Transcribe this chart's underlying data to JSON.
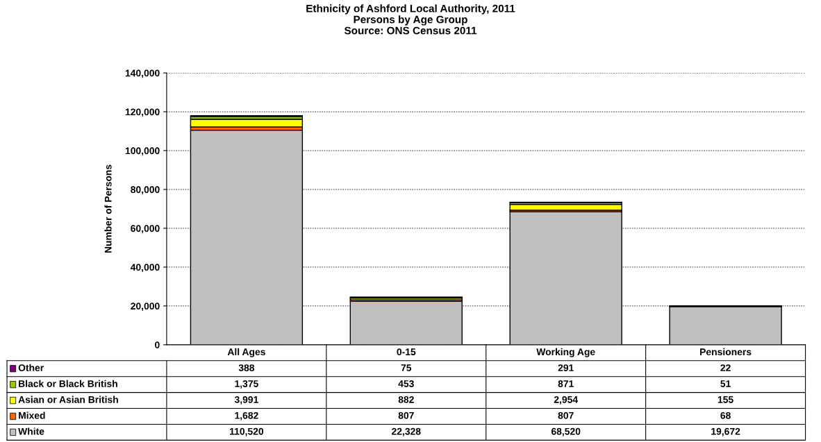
{
  "chart_data": {
    "type": "bar",
    "stacked": true,
    "title": "Ethnicity of Ashford Local Authority, 2011",
    "subtitle": "Persons by Age Group",
    "annotations": [
      "Source: ONS Census 2011"
    ],
    "ylabel": "Number of Persons",
    "categories": [
      "All Ages",
      "0-15",
      "Working Age",
      "Pensioners"
    ],
    "series": [
      {
        "name": "White",
        "color": "#c0c0c0",
        "values": [
          110520,
          22328,
          68520,
          19672
        ],
        "value_labels": [
          "110,520",
          "22,328",
          "68,520",
          "19,672"
        ]
      },
      {
        "name": "Mixed",
        "color": "#ff6600",
        "values": [
          1682,
          807,
          807,
          68
        ],
        "value_labels": [
          "1,682",
          "807",
          "807",
          "68"
        ]
      },
      {
        "name": "Asian or Asian British",
        "color": "#ffff00",
        "values": [
          3991,
          882,
          2954,
          155
        ],
        "value_labels": [
          "3,991",
          "882",
          "2,954",
          "155"
        ]
      },
      {
        "name": "Black or Black British",
        "color": "#99cc00",
        "values": [
          1375,
          453,
          871,
          51
        ],
        "value_labels": [
          "1,375",
          "453",
          "871",
          "51"
        ]
      },
      {
        "name": "Other",
        "color": "#800080",
        "values": [
          388,
          75,
          291,
          22
        ],
        "value_labels": [
          "388",
          "75",
          "291",
          "22"
        ]
      }
    ],
    "ylim": [
      0,
      140000
    ],
    "yticks": [
      {
        "value": 0,
        "label": "0"
      },
      {
        "value": 20000,
        "label": "20,000"
      },
      {
        "value": 40000,
        "label": "40,000"
      },
      {
        "value": 60000,
        "label": "60,000"
      },
      {
        "value": 80000,
        "label": "80,000"
      },
      {
        "value": 100000,
        "label": "100,000"
      },
      {
        "value": 120000,
        "label": "120,000"
      },
      {
        "value": 140000,
        "label": "140,000"
      }
    ],
    "grid": "y",
    "legend": "bottom"
  }
}
